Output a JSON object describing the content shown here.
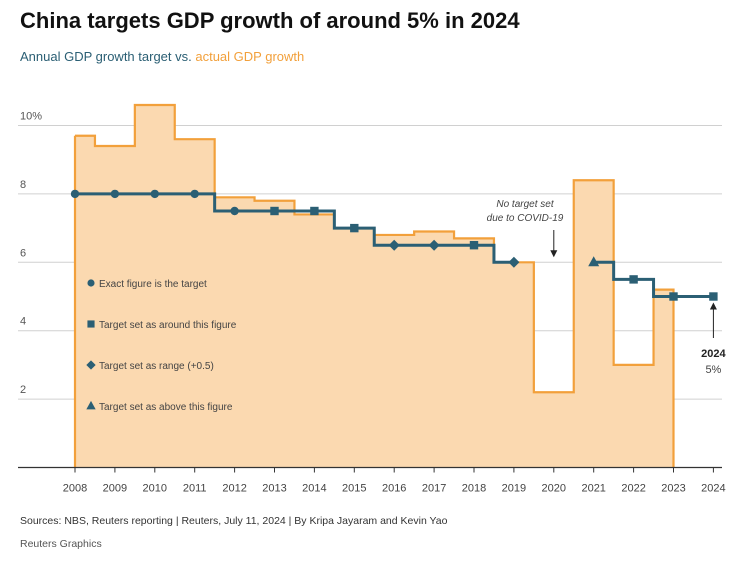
{
  "header": {
    "title": "China targets GDP growth of around 5% in 2024",
    "subtitle_target": "Annual GDP growth target",
    "subtitle_vs": " vs. ",
    "subtitle_actual": "actual GDP growth"
  },
  "colors": {
    "target": "#2b5f74",
    "actual_line": "#f2a03b",
    "actual_fill": "#fbd9b0",
    "grid": "#d0d0d0"
  },
  "chart_data": {
    "type": "line",
    "title": "China targets GDP growth of around 5% in 2024",
    "ylim": [
      0,
      10
    ],
    "y_ticks": [
      {
        "value": 2,
        "label": "2"
      },
      {
        "value": 4,
        "label": "4"
      },
      {
        "value": 6,
        "label": "6"
      },
      {
        "value": 8,
        "label": "8"
      },
      {
        "value": 10,
        "label": "10%"
      }
    ],
    "x_ticks": [
      "2008",
      "2009",
      "2010",
      "2011",
      "2012",
      "2013",
      "2014",
      "2015",
      "2016",
      "2017",
      "2018",
      "2019",
      "2020",
      "2021",
      "2022",
      "2023",
      "2024"
    ],
    "series": [
      {
        "name": "Annual GDP growth target",
        "style": "step",
        "x": [
          2008,
          2009,
          2010,
          2011,
          2012,
          2013,
          2014,
          2015,
          2016,
          2017,
          2018,
          2019,
          2020,
          2021,
          2022,
          2023,
          2024
        ],
        "values": [
          8,
          8,
          8,
          8,
          7.5,
          7.5,
          7.5,
          7,
          6.5,
          6.5,
          6.5,
          6,
          null,
          6,
          5.5,
          5,
          5
        ],
        "markers": [
          "circle",
          "circle",
          "circle",
          "circle",
          "circle",
          "square",
          "square",
          "square",
          "diamond",
          "diamond",
          "square",
          "diamond",
          null,
          "triangle",
          "square",
          "square",
          "square"
        ]
      },
      {
        "name": "actual GDP growth",
        "style": "step-area",
        "x": [
          2008,
          2009,
          2010,
          2011,
          2012,
          2013,
          2014,
          2015,
          2016,
          2017,
          2018,
          2019,
          2020,
          2021,
          2022,
          2023
        ],
        "values": [
          9.7,
          9.4,
          10.6,
          9.6,
          7.9,
          7.8,
          7.4,
          7.0,
          6.8,
          6.9,
          6.7,
          6.0,
          2.2,
          8.4,
          3.0,
          5.2
        ]
      }
    ],
    "legend": [
      {
        "marker": "circle",
        "label": "Exact figure is the target"
      },
      {
        "marker": "square",
        "label": "Target set as around this figure"
      },
      {
        "marker": "diamond",
        "label": "Target set as range (+0.5)"
      },
      {
        "marker": "triangle",
        "label": "Target set as above this figure"
      }
    ],
    "annotations": [
      {
        "x": 2020,
        "y": 6,
        "lines": [
          "No target set",
          "due to COVID-19"
        ]
      },
      {
        "x": 2024,
        "y": 5,
        "lines": [
          "2024",
          "5%"
        ]
      }
    ]
  },
  "footer": {
    "sources": "Sources: NBS, Reuters reporting | Reuters, July 11, 2024 | By Kripa Jayaram and Kevin Yao",
    "credit": "Reuters Graphics"
  }
}
